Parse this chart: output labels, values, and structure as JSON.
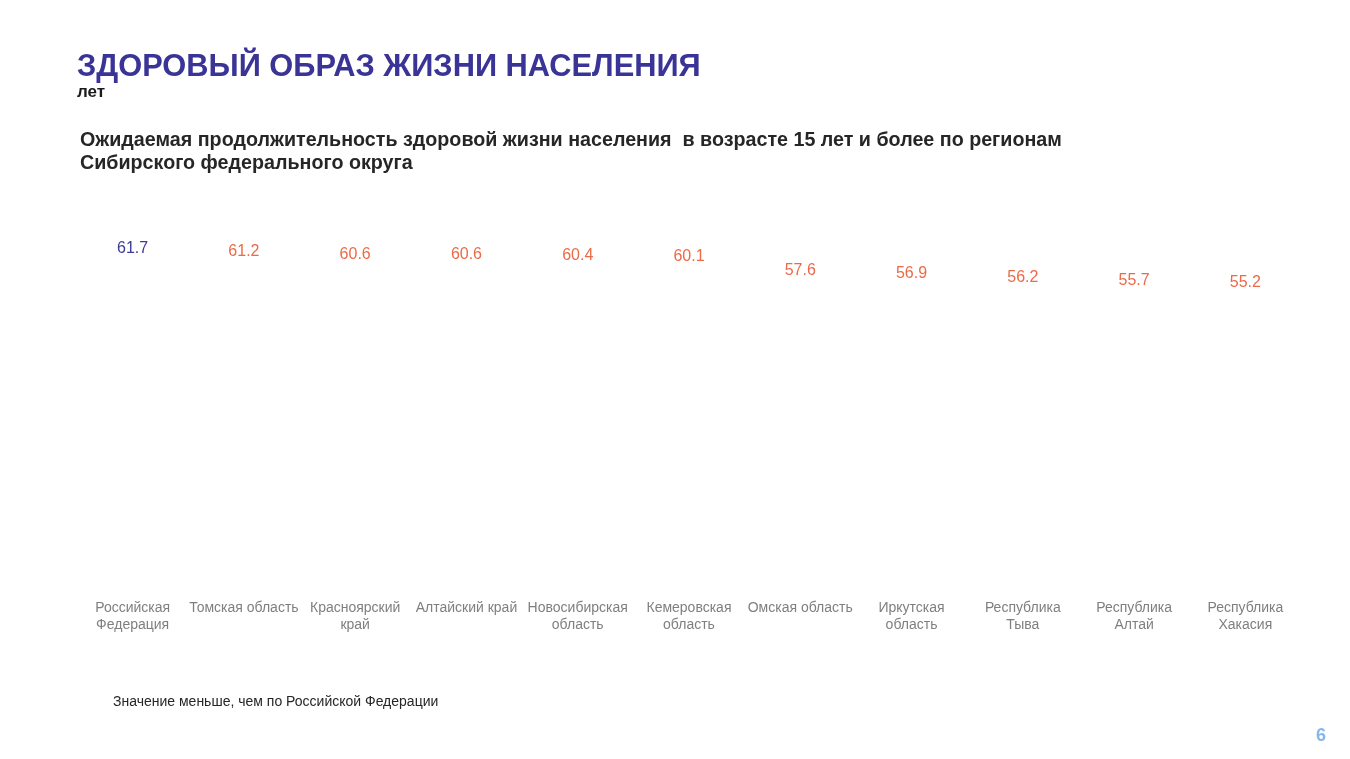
{
  "chart_data": {
    "type": "other",
    "title": "ЗДОРОВЫЙ ОБРАЗ ЖИЗНИ НАСЕЛЕНИЯ",
    "ylabel": "лет",
    "subtitle": "Ожидаемая продолжительность здоровой жизни населения  в возрасте 15 лет и более по регионам Сибирского федерального округа",
    "categories": [
      "Российская Федерация",
      "Томская область",
      "Красноярский край",
      "Алтайский край",
      "Новосибирская область",
      "Кемеровская область",
      "Омская область",
      "Иркутская область",
      "Республика Тыва",
      "Республика Алтай",
      "Республика Хакасия"
    ],
    "values": [
      61.7,
      61.2,
      60.6,
      60.6,
      60.4,
      60.1,
      57.6,
      56.9,
      56.2,
      55.7,
      55.2
    ],
    "colors": [
      "#3d3a98",
      "#eb6a48",
      "#eb6a48",
      "#eb6a48",
      "#eb6a48",
      "#eb6a48",
      "#eb6a48",
      "#eb6a48",
      "#eb6a48",
      "#eb6a48",
      "#eb6a48"
    ],
    "data_labels": true,
    "annotations": [
      "Значение меньше, чем по Российской Федерации",
      "6"
    ]
  }
}
